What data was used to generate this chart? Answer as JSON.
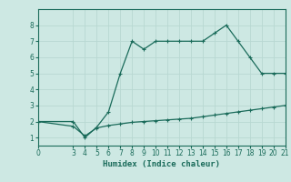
{
  "upper_x": [
    0,
    3,
    4,
    5,
    6,
    7,
    8,
    9,
    10,
    11,
    12,
    13,
    14,
    15,
    16,
    17,
    18,
    19,
    20,
    21
  ],
  "upper_y": [
    2.0,
    2.0,
    1.0,
    1.65,
    2.6,
    5.0,
    7.0,
    6.5,
    7.0,
    7.0,
    7.0,
    7.0,
    7.0,
    7.5,
    8.0,
    7.0,
    6.0,
    5.0,
    5.0,
    5.0
  ],
  "lower_x": [
    0,
    3,
    4,
    5,
    6,
    7,
    8,
    9,
    10,
    11,
    12,
    13,
    14,
    15,
    16,
    17,
    18,
    19,
    20,
    21
  ],
  "lower_y": [
    2.0,
    1.7,
    1.1,
    1.6,
    1.75,
    1.85,
    1.95,
    2.0,
    2.05,
    2.1,
    2.15,
    2.2,
    2.3,
    2.4,
    2.5,
    2.6,
    2.7,
    2.8,
    2.9,
    3.0
  ],
  "line_color": "#1a6b5a",
  "bg_color": "#cde8e3",
  "grid_color": "#b8d8d2",
  "xlabel": "Humidex (Indice chaleur)",
  "xlim": [
    0,
    21
  ],
  "ylim": [
    0.5,
    9
  ],
  "xticks": [
    0,
    3,
    4,
    5,
    6,
    7,
    8,
    9,
    10,
    11,
    12,
    13,
    14,
    15,
    16,
    17,
    18,
    19,
    20,
    21
  ],
  "yticks": [
    1,
    2,
    3,
    4,
    5,
    6,
    7,
    8
  ],
  "tick_fontsize": 5.5,
  "label_fontsize": 6.5
}
